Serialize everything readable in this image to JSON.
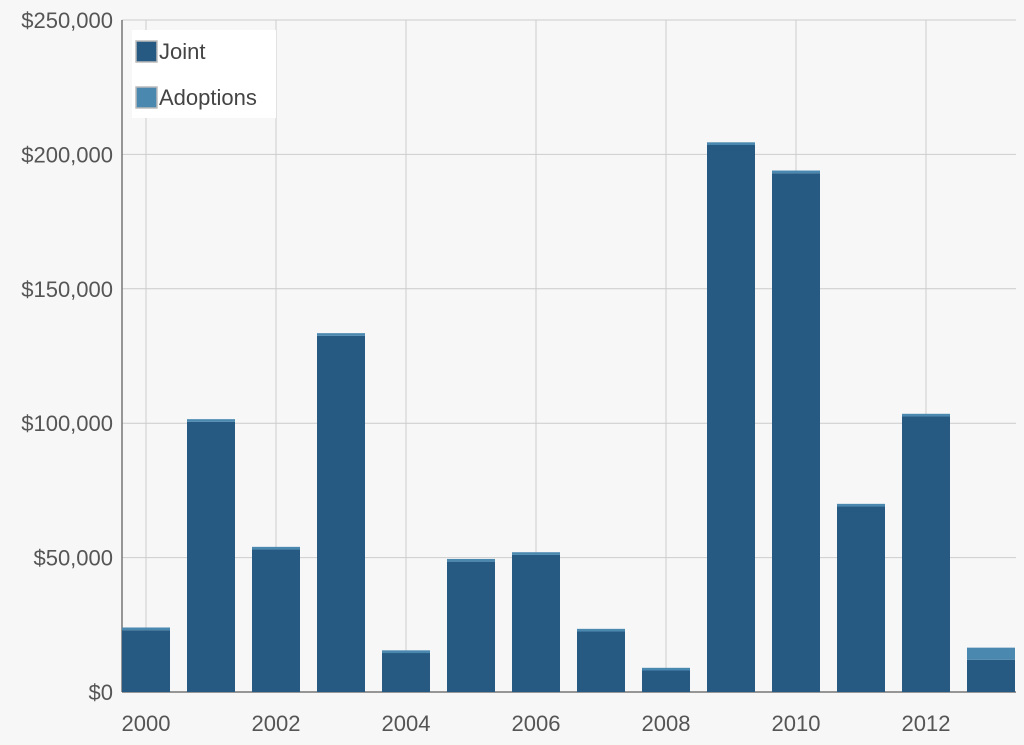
{
  "chart_data": {
    "type": "bar",
    "stacked": true,
    "categories": [
      "2000",
      "2001",
      "2002",
      "2003",
      "2004",
      "2005",
      "2006",
      "2007",
      "2008",
      "2009",
      "2010",
      "2011",
      "2012",
      "2013"
    ],
    "x_tick_labels": [
      "2000",
      "2002",
      "2004",
      "2006",
      "2008",
      "2010",
      "2012"
    ],
    "series": [
      {
        "name": "Joint",
        "color": "#265a82",
        "values": [
          23000,
          100500,
          53000,
          132500,
          14500,
          48500,
          51000,
          22500,
          8000,
          203500,
          193000,
          69000,
          102500,
          12000
        ]
      },
      {
        "name": "Adoptions",
        "color": "#4a88b0",
        "values": [
          1000,
          1000,
          1000,
          1000,
          1000,
          1000,
          1000,
          1000,
          1000,
          1000,
          1000,
          1000,
          1000,
          4500
        ]
      }
    ],
    "ylim": [
      0,
      250000
    ],
    "y_tick_labels": [
      "$0",
      "$50,000",
      "$100,000",
      "$150,000",
      "$200,000",
      "$250,000"
    ],
    "y_tick_values": [
      0,
      50000,
      100000,
      150000,
      200000,
      250000
    ],
    "grid": true,
    "legend_position": "top-left",
    "title": "",
    "xlabel": "",
    "ylabel": ""
  }
}
